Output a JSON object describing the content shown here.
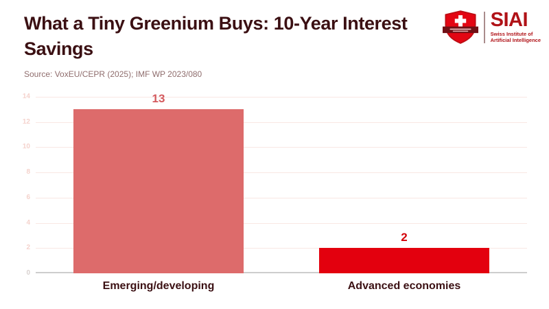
{
  "header": {
    "title": "What a Tiny Greenium Buys: 10-Year Interest Savings",
    "source": "Source: VoxEU/CEPR (2025); IMF WP 2023/080"
  },
  "logo": {
    "acronym": "SIAI",
    "subtitle_line1": "Swiss Institute of",
    "subtitle_line2": "Artificial Intelligence",
    "shield_icon": "swiss-shield-icon",
    "brand_red": "#b01217",
    "shield_red": "#e30613"
  },
  "chart_data": {
    "type": "bar",
    "title": "What a Tiny Greenium Buys: 10-Year Interest Savings",
    "source": "Source: VoxEU/CEPR (2025); IMF WP 2023/080",
    "categories": [
      "Emerging/developing",
      "Advanced economies"
    ],
    "values": [
      13,
      2
    ],
    "data_labels": [
      "13",
      "2"
    ],
    "bar_colors": [
      "#dd6b6b",
      "#e3000e"
    ],
    "value_label_colors": [
      "#d45a5e",
      "#d30008"
    ],
    "xlabel": "",
    "ylabel": "",
    "ylim": [
      0,
      14
    ],
    "ytick_step": 2,
    "yticks": [
      0,
      2,
      4,
      6,
      8,
      10,
      12,
      14
    ],
    "grid": true,
    "legend": "none"
  },
  "colors": {
    "background": "#ffffff",
    "title_text": "#3b1013",
    "source_text": "#8f6d6d",
    "category_label": "#3b1013",
    "gridline": "#f9e7e3",
    "tick_label": "#f5d3cd",
    "zero_tick_label": "#d9d2d0",
    "baseline": "#cdcdcd"
  }
}
